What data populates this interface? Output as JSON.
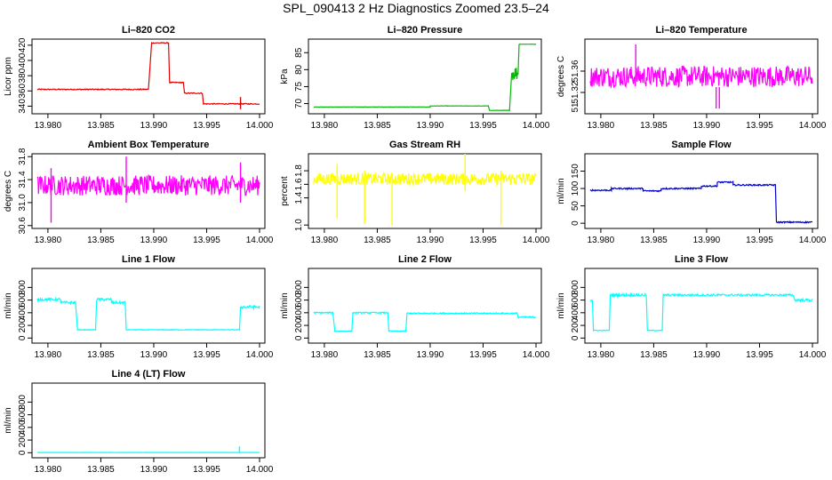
{
  "title": "SPL_090413  2 Hz Diagnostics Zoomed 23.5–24",
  "chart_data": [
    {
      "type": "line",
      "name": "li820-co2",
      "title": "Li–820 CO2",
      "ylabel": "Licor ppm",
      "color": "#e00000",
      "xlim": [
        13.979,
        14.0
      ],
      "ylim": [
        330,
        428
      ],
      "xticks": [
        13.98,
        13.985,
        13.99,
        13.995,
        14.0
      ],
      "xtick_labels": [
        "13.980",
        "13.985",
        "13.990",
        "13.995",
        "14.000"
      ],
      "yticks": [
        340,
        360,
        380,
        400,
        420
      ],
      "ytick_labels": [
        "340",
        "360",
        "380",
        "400",
        "420"
      ],
      "segments": [
        [
          13.979,
          13.9895,
          362,
          1.3
        ],
        [
          13.9898,
          13.9914,
          423,
          1.0
        ],
        [
          13.9915,
          13.9928,
          371,
          1.3
        ],
        [
          13.9929,
          13.9946,
          357,
          1.3
        ],
        [
          13.9947,
          14.0,
          343,
          1.3
        ]
      ],
      "spikes": [
        [
          13.9982,
          336,
          352
        ]
      ]
    },
    {
      "type": "line",
      "name": "li820-pressure",
      "title": "Li–820 Pressure",
      "ylabel": "kPa",
      "color": "#00bb00",
      "xlim": [
        13.979,
        14.0
      ],
      "ylim": [
        67,
        89
      ],
      "xticks": [
        13.98,
        13.985,
        13.99,
        13.995,
        14.0
      ],
      "xtick_labels": [
        "13.980",
        "13.985",
        "13.990",
        "13.995",
        "14.000"
      ],
      "yticks": [
        70,
        75,
        80,
        85
      ],
      "ytick_labels": [
        "70",
        "75",
        "80",
        "85"
      ],
      "segments": [
        [
          13.979,
          13.99,
          69.0,
          0.1
        ],
        [
          13.99,
          13.9955,
          69.3,
          0.1
        ],
        [
          13.9956,
          13.9975,
          68.0,
          0.1
        ],
        [
          13.9977,
          13.9983,
          79.0,
          4.5
        ],
        [
          13.9984,
          14.0,
          87.5,
          0.1
        ]
      ],
      "spikes": []
    },
    {
      "type": "line",
      "name": "li820-temperature",
      "title": "Li–820 Temperature",
      "ylabel": "degrees C",
      "color": "#ff00ff",
      "xlim": [
        13.979,
        14.0
      ],
      "ylim": [
        51.28,
        51.42
      ],
      "xticks": [
        13.98,
        13.985,
        13.99,
        13.995,
        14.0
      ],
      "xtick_labels": [
        "13.980",
        "13.985",
        "13.990",
        "13.995",
        "14.000"
      ],
      "yticks": [
        51.32,
        51.36
      ],
      "ytick_labels": [
        "51.32",
        "51.36"
      ],
      "ytick_labels_extra": "51.",
      "segments": [
        [
          13.979,
          14.0,
          51.35,
          0.04
        ]
      ],
      "spikes": [
        [
          13.9833,
          51.35,
          51.41
        ],
        [
          13.9909,
          51.29,
          51.33
        ],
        [
          13.9912,
          51.29,
          51.33
        ]
      ]
    },
    {
      "type": "line",
      "name": "ambient-box-temperature",
      "title": "Ambient Box Temperature",
      "ylabel": "degrees C",
      "color": "#ff00ff",
      "xlim": [
        13.979,
        14.0
      ],
      "ylim": [
        30.55,
        31.85
      ],
      "xticks": [
        13.98,
        13.985,
        13.99,
        13.995,
        14.0
      ],
      "xtick_labels": [
        "13.980",
        "13.985",
        "13.990",
        "13.995",
        "14.000"
      ],
      "yticks": [
        30.6,
        31.0,
        31.4,
        31.8
      ],
      "ytick_labels": [
        "30.6",
        "31.0",
        "31.4",
        "31.8"
      ],
      "segments": [
        [
          13.979,
          14.0,
          31.3,
          0.35
        ]
      ],
      "spikes": [
        [
          13.9803,
          30.65,
          31.6
        ],
        [
          13.9874,
          31.0,
          31.8
        ],
        [
          13.9982,
          31.0,
          31.7
        ]
      ]
    },
    {
      "type": "line",
      "name": "gas-stream-rh",
      "title": "Gas Stream RH",
      "ylabel": "percent",
      "color": "#ffff00",
      "xlim": [
        13.979,
        14.0
      ],
      "ylim": [
        0.95,
        2.05
      ],
      "xticks": [
        13.98,
        13.985,
        13.99,
        13.995,
        14.0
      ],
      "xtick_labels": [
        "13.980",
        "13.985",
        "13.990",
        "13.995",
        "14.000"
      ],
      "yticks": [
        1.0,
        1.4,
        1.6,
        1.8
      ],
      "ytick_labels": [
        "1.0",
        "1.4",
        "1.6",
        "1.8"
      ],
      "segments": [
        [
          13.979,
          14.0,
          1.68,
          0.18
        ]
      ],
      "spikes": [
        [
          13.9812,
          1.1,
          1.9
        ],
        [
          13.9838,
          1.02,
          1.8
        ],
        [
          13.9864,
          1.0,
          1.75
        ],
        [
          13.9933,
          1.5,
          2.05
        ],
        [
          13.9967,
          1.0,
          1.8
        ]
      ]
    },
    {
      "type": "line",
      "name": "sample-flow",
      "title": "Sample Flow",
      "ylabel": "ml/min",
      "color": "#0000cc",
      "xlim": [
        13.979,
        14.0
      ],
      "ylim": [
        -15,
        200
      ],
      "xticks": [
        13.98,
        13.985,
        13.99,
        13.995,
        14.0
      ],
      "xtick_labels": [
        "13.980",
        "13.985",
        "13.990",
        "13.995",
        "14.000"
      ],
      "yticks": [
        0,
        50,
        100,
        150
      ],
      "ytick_labels": [
        "0",
        "50",
        "100",
        "150"
      ],
      "segments": [
        [
          13.979,
          13.981,
          95,
          4
        ],
        [
          13.981,
          13.9825,
          100,
          4
        ],
        [
          13.9825,
          13.984,
          100,
          4
        ],
        [
          13.984,
          13.9857,
          93,
          4
        ],
        [
          13.9857,
          13.9895,
          100,
          4
        ],
        [
          13.9895,
          13.991,
          107,
          4
        ],
        [
          13.991,
          13.9925,
          118,
          4
        ],
        [
          13.9925,
          13.9965,
          110,
          4
        ],
        [
          13.9966,
          14.0,
          3,
          4
        ]
      ],
      "spikes": []
    },
    {
      "type": "line",
      "name": "line1-flow",
      "title": "Line 1 Flow",
      "ylabel": "ml/min",
      "color": "#00ffff",
      "xlim": [
        13.979,
        14.0
      ],
      "ylim": [
        -80,
        1100
      ],
      "xticks": [
        13.98,
        13.985,
        13.99,
        13.995,
        14.0
      ],
      "xtick_labels": [
        "13.980",
        "13.985",
        "13.990",
        "13.995",
        "14.000"
      ],
      "yticks": [
        0,
        200,
        400,
        600,
        800
      ],
      "ytick_labels": [
        "0",
        "200",
        "400",
        "600",
        "800"
      ],
      "segments": [
        [
          13.979,
          13.9812,
          610,
          40
        ],
        [
          13.9812,
          13.9826,
          560,
          40
        ],
        [
          13.9828,
          13.9845,
          130,
          10
        ],
        [
          13.9846,
          13.986,
          610,
          40
        ],
        [
          13.986,
          13.9873,
          560,
          40
        ],
        [
          13.9874,
          13.9981,
          130,
          10
        ],
        [
          13.9982,
          14.0,
          490,
          50
        ]
      ],
      "spikes": []
    },
    {
      "type": "line",
      "name": "line2-flow",
      "title": "Line 2 Flow",
      "ylabel": "ml/min",
      "color": "#00ffff",
      "xlim": [
        13.979,
        14.0
      ],
      "ylim": [
        -80,
        1100
      ],
      "xticks": [
        13.98,
        13.985,
        13.99,
        13.995,
        14.0
      ],
      "xtick_labels": [
        "13.980",
        "13.985",
        "13.990",
        "13.995",
        "14.000"
      ],
      "yticks": [
        0,
        200,
        400,
        600,
        800
      ],
      "ytick_labels": [
        "0",
        "200",
        "400",
        "600",
        "800"
      ],
      "segments": [
        [
          13.979,
          13.9808,
          400,
          20
        ],
        [
          13.981,
          13.9826,
          110,
          10
        ],
        [
          13.9827,
          13.986,
          400,
          20
        ],
        [
          13.9861,
          13.9877,
          110,
          10
        ],
        [
          13.9878,
          13.9982,
          390,
          20
        ],
        [
          13.9983,
          14.0,
          330,
          25
        ]
      ],
      "spikes": []
    },
    {
      "type": "line",
      "name": "line3-flow",
      "title": "Line 3 Flow",
      "ylabel": "ml/min",
      "color": "#00ffff",
      "xlim": [
        13.979,
        14.0
      ],
      "ylim": [
        -80,
        1100
      ],
      "xticks": [
        13.98,
        13.985,
        13.99,
        13.995,
        14.0
      ],
      "xtick_labels": [
        "13.980",
        "13.985",
        "13.990",
        "13.995",
        "14.000"
      ],
      "yticks": [
        0,
        200,
        400,
        600,
        800
      ],
      "ytick_labels": [
        "0",
        "200",
        "400",
        "600",
        "800"
      ],
      "segments": [
        [
          13.979,
          13.9792,
          600,
          30
        ],
        [
          13.9793,
          13.9808,
          120,
          10
        ],
        [
          13.9809,
          13.9843,
          680,
          40
        ],
        [
          13.9844,
          13.9858,
          120,
          10
        ],
        [
          13.9859,
          13.9982,
          680,
          30
        ],
        [
          13.9983,
          14.0,
          600,
          40
        ]
      ],
      "spikes": []
    },
    {
      "type": "line",
      "name": "line4-flow",
      "title": "Line 4 (LT) Flow",
      "ylabel": "ml/min",
      "color": "#00ffff",
      "xlim": [
        13.979,
        14.0
      ],
      "ylim": [
        -80,
        1100
      ],
      "xticks": [
        13.98,
        13.985,
        13.99,
        13.995,
        14.0
      ],
      "xtick_labels": [
        "13.980",
        "13.985",
        "13.990",
        "13.995",
        "14.000"
      ],
      "yticks": [
        0,
        200,
        400,
        600,
        800
      ],
      "ytick_labels": [
        "0",
        "200",
        "400",
        "600",
        "800"
      ],
      "segments": [
        [
          13.979,
          14.0,
          3,
          2
        ]
      ],
      "spikes": [
        [
          13.9981,
          0,
          100
        ]
      ]
    }
  ]
}
